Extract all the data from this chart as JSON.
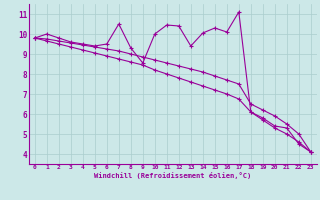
{
  "x": [
    0,
    1,
    2,
    3,
    4,
    5,
    6,
    7,
    8,
    9,
    10,
    11,
    12,
    13,
    14,
    15,
    16,
    17,
    18,
    19,
    20,
    21,
    22,
    23
  ],
  "y_line": [
    9.8,
    10.0,
    9.8,
    9.6,
    9.5,
    9.4,
    9.5,
    10.5,
    9.3,
    8.55,
    10.0,
    10.45,
    10.4,
    9.4,
    10.05,
    10.3,
    10.1,
    11.1,
    6.1,
    5.8,
    5.4,
    5.3,
    4.5,
    4.1
  ],
  "y_upper": [
    9.8,
    9.75,
    9.65,
    9.55,
    9.45,
    9.35,
    9.25,
    9.15,
    9.0,
    8.85,
    8.7,
    8.55,
    8.4,
    8.25,
    8.1,
    7.9,
    7.7,
    7.5,
    6.5,
    6.2,
    5.9,
    5.5,
    5.0,
    4.1
  ],
  "y_lower": [
    9.8,
    9.65,
    9.5,
    9.35,
    9.2,
    9.05,
    8.9,
    8.75,
    8.6,
    8.45,
    8.2,
    8.0,
    7.8,
    7.6,
    7.4,
    7.2,
    7.0,
    6.75,
    6.1,
    5.7,
    5.3,
    5.0,
    4.6,
    4.1
  ],
  "color": "#990099",
  "bg_color": "#cce8e8",
  "grid_color": "#aacece",
  "xlabel": "Windchill (Refroidissement éolien,°C)",
  "xlim": [
    -0.5,
    23.5
  ],
  "ylim": [
    3.5,
    11.5
  ],
  "xticks": [
    0,
    1,
    2,
    3,
    4,
    5,
    6,
    7,
    8,
    9,
    10,
    11,
    12,
    13,
    14,
    15,
    16,
    17,
    18,
    19,
    20,
    21,
    22,
    23
  ],
  "yticks": [
    4,
    5,
    6,
    7,
    8,
    9,
    10,
    11
  ]
}
